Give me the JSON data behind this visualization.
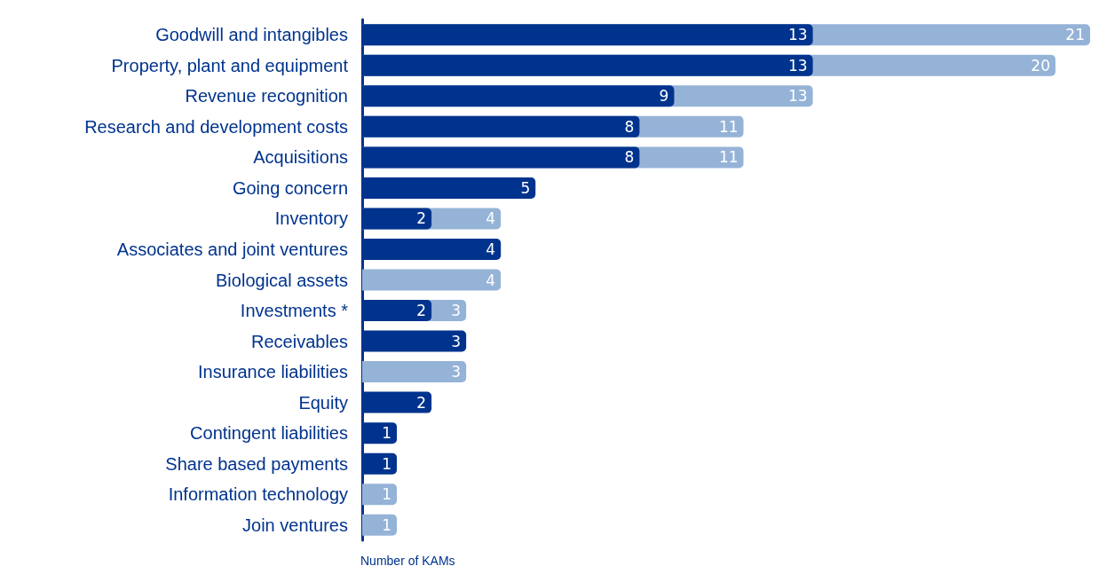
{
  "chart_data": {
    "type": "bar",
    "orientation": "horizontal",
    "xlabel": "Number of KAMs",
    "data_labels": true,
    "grid": false,
    "tick_labels": "y",
    "categories": [
      "Goodwill and intangibles",
      "Property, plant and equipment",
      "Revenue recognition",
      "Research and development costs",
      "Acquisitions",
      "Going concern",
      "Inventory",
      "Associates and joint ventures",
      "Biological assets",
      "Investments *",
      "Receivables",
      "Insurance liabilities",
      "Equity",
      "Contingent liabilities",
      "Share based payments",
      "Information technology",
      "Join ventures"
    ],
    "xlim": [
      0,
      21
    ],
    "series": [
      {
        "color": "#95b3d7",
        "values": [
          21,
          20,
          13,
          11,
          11,
          null,
          4,
          null,
          4,
          3,
          null,
          3,
          null,
          null,
          null,
          1,
          1
        ]
      },
      {
        "color": "#00338d",
        "values": [
          13,
          13,
          9,
          8,
          8,
          5,
          2,
          4,
          null,
          2,
          3,
          null,
          2,
          1,
          1,
          null,
          null
        ]
      }
    ]
  }
}
